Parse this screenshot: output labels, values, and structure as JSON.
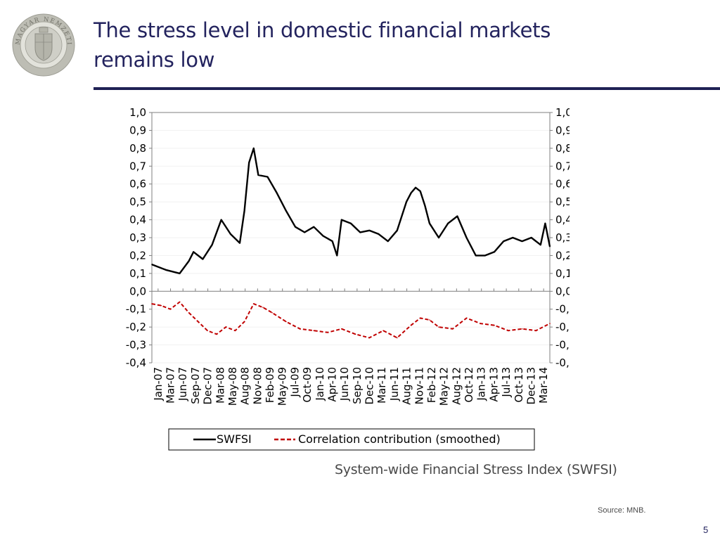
{
  "slide": {
    "title_line1": "The stress level in domestic financial markets",
    "title_line2": "remains low",
    "caption": "System-wide Financial Stress Index (SWFSI)",
    "source": "Source: MNB.",
    "page_number": "5",
    "logo_text": "MAGYAR NEMZETI BANK"
  },
  "colors": {
    "title": "#23235e",
    "rule": "#1f2155",
    "swfsi": "#000000",
    "correlation": "#c00000",
    "text": "#4a4a4a"
  },
  "chart_data": {
    "type": "line",
    "title": "",
    "xlabel": "",
    "ylabel": "",
    "ylim": [
      -0.4,
      1.0
    ],
    "y2lim": [
      -0.4,
      1.0
    ],
    "y_ticks": [
      "1,0",
      "0,9",
      "0,8",
      "0,7",
      "0,6",
      "0,5",
      "0,4",
      "0,3",
      "0,2",
      "0,1",
      "0,0",
      "-0,1",
      "-0,2",
      "-0,3",
      "-0,4"
    ],
    "x_ticks": [
      "Jan-07",
      "Mar-07",
      "Jun-07",
      "Sep-07",
      "Dec-07",
      "Mar-08",
      "May-08",
      "Aug-08",
      "Nov-08",
      "Feb-09",
      "May-09",
      "Jul-09",
      "Oct-09",
      "Jan-10",
      "Apr-10",
      "Jun-10",
      "Sep-10",
      "Dec-10",
      "Mar-11",
      "Jun-11",
      "Aug-11",
      "Nov-11",
      "Feb-12",
      "May-12",
      "Aug-12",
      "Oct-12",
      "Jan-13",
      "Apr-13",
      "Jul-13",
      "Oct-13",
      "Dec-13",
      "Mar-14"
    ],
    "x_range": [
      "2007-01",
      "2014-03"
    ],
    "grid": false,
    "legend": "bottom",
    "series": [
      {
        "name": "SWFSI",
        "style": "solid",
        "color": "#000000",
        "x": [
          "2007-01",
          "2007-04",
          "2007-07",
          "2007-09",
          "2007-10",
          "2007-12",
          "2008-02",
          "2008-04",
          "2008-06",
          "2008-08",
          "2008-09",
          "2008-10",
          "2008-11",
          "2008-12",
          "2009-02",
          "2009-04",
          "2009-06",
          "2009-08",
          "2009-10",
          "2009-12",
          "2010-02",
          "2010-04",
          "2010-05",
          "2010-06",
          "2010-08",
          "2010-10",
          "2010-12",
          "2011-02",
          "2011-04",
          "2011-06",
          "2011-08",
          "2011-09",
          "2011-10",
          "2011-11",
          "2011-12",
          "2012-01",
          "2012-03",
          "2012-05",
          "2012-07",
          "2012-09",
          "2012-11",
          "2013-01",
          "2013-03",
          "2013-05",
          "2013-07",
          "2013-09",
          "2013-11",
          "2014-01",
          "2014-02",
          "2014-03"
        ],
        "values": [
          0.15,
          0.12,
          0.1,
          0.17,
          0.22,
          0.18,
          0.26,
          0.4,
          0.32,
          0.27,
          0.45,
          0.72,
          0.8,
          0.65,
          0.64,
          0.55,
          0.45,
          0.36,
          0.33,
          0.36,
          0.31,
          0.28,
          0.2,
          0.4,
          0.38,
          0.33,
          0.34,
          0.32,
          0.28,
          0.34,
          0.5,
          0.55,
          0.58,
          0.56,
          0.48,
          0.38,
          0.3,
          0.38,
          0.42,
          0.3,
          0.2,
          0.2,
          0.22,
          0.28,
          0.3,
          0.28,
          0.3,
          0.26,
          0.38,
          0.25
        ]
      },
      {
        "name": "Correlation contribution (smoothed)",
        "style": "dashed",
        "color": "#c00000",
        "x": [
          "2007-01",
          "2007-03",
          "2007-05",
          "2007-07",
          "2007-09",
          "2007-11",
          "2008-01",
          "2008-03",
          "2008-05",
          "2008-07",
          "2008-09",
          "2008-11",
          "2009-01",
          "2009-03",
          "2009-06",
          "2009-09",
          "2009-12",
          "2010-03",
          "2010-06",
          "2010-09",
          "2010-12",
          "2011-03",
          "2011-06",
          "2011-09",
          "2011-11",
          "2012-01",
          "2012-03",
          "2012-06",
          "2012-09",
          "2012-12",
          "2013-03",
          "2013-06",
          "2013-09",
          "2013-12",
          "2014-03"
        ],
        "values": [
          -0.07,
          -0.08,
          -0.1,
          -0.06,
          -0.12,
          -0.17,
          -0.22,
          -0.24,
          -0.2,
          -0.22,
          -0.17,
          -0.07,
          -0.09,
          -0.12,
          -0.17,
          -0.21,
          -0.22,
          -0.23,
          -0.21,
          -0.24,
          -0.26,
          -0.22,
          -0.26,
          -0.19,
          -0.15,
          -0.16,
          -0.2,
          -0.21,
          -0.15,
          -0.18,
          -0.19,
          -0.22,
          -0.21,
          -0.22,
          -0.18
        ]
      }
    ]
  }
}
